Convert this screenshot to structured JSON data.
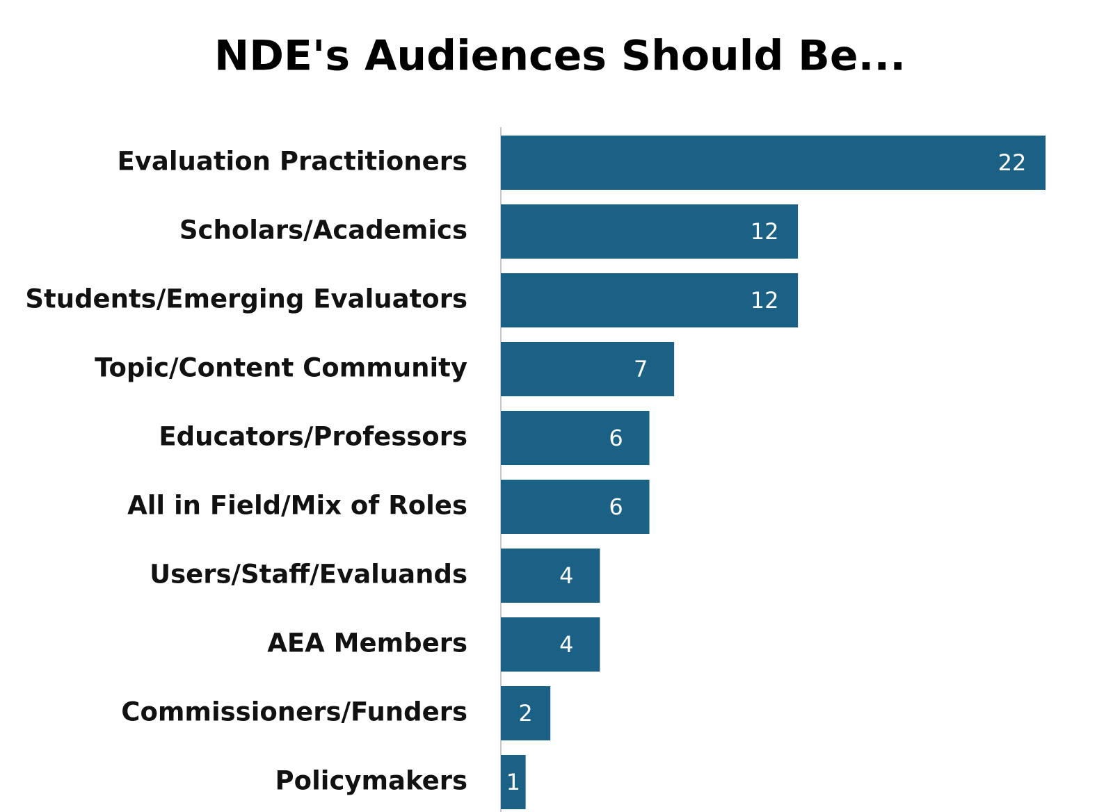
{
  "chart_data": {
    "type": "bar",
    "orientation": "horizontal",
    "title": "NDE's Audiences Should Be...",
    "categories": [
      "Evaluation Practitioners",
      "Scholars/Academics",
      "Students/Emerging Evaluators",
      "Topic/Content Community",
      "Educators/Professors",
      "All in Field/Mix of Roles",
      "Users/Staff/Evaluands",
      "AEA Members",
      "Commissioners/Funders",
      "Policymakers"
    ],
    "values": [
      22,
      12,
      12,
      7,
      6,
      6,
      4,
      4,
      2,
      1
    ],
    "color": "#1a6185"
  }
}
